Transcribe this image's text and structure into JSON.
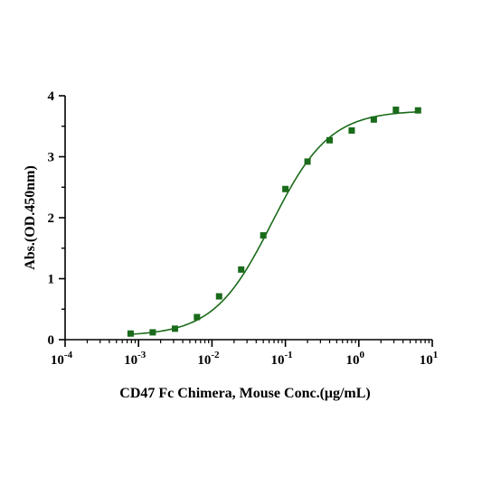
{
  "colors": {
    "series": "#1a6b1a",
    "axis": "#000000",
    "background": "#ffffff"
  },
  "chart_data": {
    "type": "scatter",
    "title": "",
    "xlabel": "CD47 Fc Chimera, Mouse Conc.(μg/mL)",
    "ylabel": "Abs.(OD.450nm)",
    "x_scale": "log",
    "xlim": [
      0.0001,
      10
    ],
    "ylim": [
      0,
      4
    ],
    "x_ticks": [
      {
        "value": 0.0001,
        "base": "10",
        "exp": "-4"
      },
      {
        "value": 0.001,
        "base": "10",
        "exp": "-3"
      },
      {
        "value": 0.01,
        "base": "10",
        "exp": "-2"
      },
      {
        "value": 0.1,
        "base": "10",
        "exp": "-1"
      },
      {
        "value": 1,
        "base": "10",
        "exp": "0"
      },
      {
        "value": 10,
        "base": "10",
        "exp": "1"
      }
    ],
    "y_ticks": [
      {
        "value": 0,
        "label": "0"
      },
      {
        "value": 1,
        "label": "1"
      },
      {
        "value": 2,
        "label": "2"
      },
      {
        "value": 3,
        "label": "3"
      },
      {
        "value": 4,
        "label": "4"
      }
    ],
    "grid": false,
    "legend": "none",
    "series": [
      {
        "marker": "square",
        "points": [
          {
            "x": 0.00078,
            "y": 0.1
          },
          {
            "x": 0.00156,
            "y": 0.12
          },
          {
            "x": 0.00313,
            "y": 0.18
          },
          {
            "x": 0.00625,
            "y": 0.37
          },
          {
            "x": 0.0125,
            "y": 0.71
          },
          {
            "x": 0.025,
            "y": 1.15
          },
          {
            "x": 0.05,
            "y": 1.71
          },
          {
            "x": 0.1,
            "y": 2.47
          },
          {
            "x": 0.2,
            "y": 2.92
          },
          {
            "x": 0.4,
            "y": 3.27
          },
          {
            "x": 0.8,
            "y": 3.43
          },
          {
            "x": 1.6,
            "y": 3.61
          },
          {
            "x": 3.2,
            "y": 3.77
          },
          {
            "x": 6.4,
            "y": 3.76
          }
        ],
        "fit": {
          "model": "4PL",
          "bottom": 0.06,
          "top": 3.76,
          "ec50": 0.065,
          "hill": 1.1
        }
      }
    ]
  }
}
